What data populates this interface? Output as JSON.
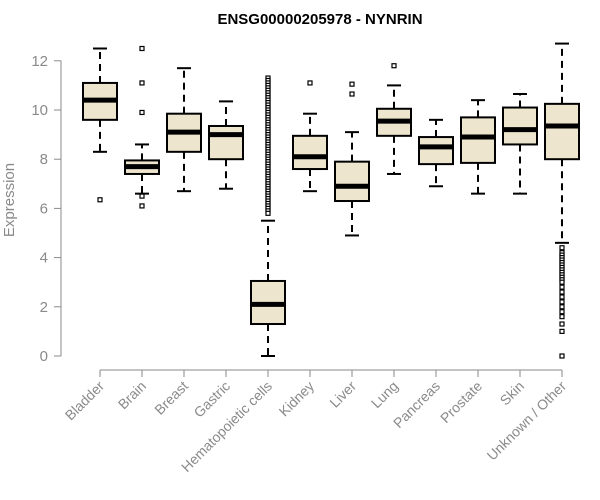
{
  "chart_data": {
    "type": "boxplot",
    "title": "ENSG00000205978 - NYNRIN",
    "ylabel": "Expression",
    "xlabel": "",
    "ylim": [
      0,
      12.8
    ],
    "yticks": [
      0,
      2,
      4,
      6,
      8,
      10,
      12
    ],
    "grid": false,
    "legend": "none",
    "colors": {
      "box_fill": "#ede5cd",
      "stroke": "#000000",
      "axis": "#8a8a8a",
      "label": "#8a8a8a"
    },
    "categories": [
      "Bladder",
      "Brain",
      "Breast",
      "Gastric",
      "Hematopoietic cells",
      "Kidney",
      "Liver",
      "Lung",
      "Pancreas",
      "Prostate",
      "Skin",
      "Unknown / Other"
    ],
    "boxes": [
      {
        "whisker_low": 8.3,
        "q1": 9.6,
        "median": 10.4,
        "q3": 11.1,
        "whisker_high": 12.5,
        "outliers": [
          6.35
        ]
      },
      {
        "whisker_low": 6.6,
        "q1": 7.4,
        "median": 7.7,
        "q3": 7.95,
        "whisker_high": 8.6,
        "outliers": [
          12.5,
          11.1,
          9.9,
          6.5,
          6.1
        ]
      },
      {
        "whisker_low": 6.7,
        "q1": 8.3,
        "median": 9.1,
        "q3": 9.85,
        "whisker_high": 11.7,
        "outliers": []
      },
      {
        "whisker_low": 6.8,
        "q1": 8.0,
        "median": 9.0,
        "q3": 9.35,
        "whisker_high": 10.35,
        "outliers": []
      },
      {
        "whisker_low": 0.0,
        "q1": 1.3,
        "median": 2.1,
        "q3": 3.05,
        "whisker_high": 5.5,
        "outliers": [
          11.3,
          11.2,
          11.1,
          11.0,
          10.9,
          10.8,
          10.7,
          10.6,
          10.5,
          10.4,
          10.3,
          10.2,
          10.1,
          10.0,
          9.9,
          9.8,
          9.7,
          9.6,
          9.5,
          9.4,
          9.3,
          9.2,
          9.1,
          9.0,
          8.9,
          8.8,
          8.7,
          8.6,
          8.5,
          8.4,
          8.3,
          8.2,
          8.1,
          8.0,
          7.9,
          7.8,
          7.7,
          7.6,
          7.5,
          7.4,
          7.3,
          7.2,
          7.1,
          7.0,
          6.9,
          6.8,
          6.7,
          6.6,
          6.5,
          6.4,
          6.3,
          6.2,
          6.1,
          6.0,
          5.9,
          5.8
        ]
      },
      {
        "whisker_low": 6.7,
        "q1": 7.6,
        "median": 8.1,
        "q3": 8.95,
        "whisker_high": 9.85,
        "outliers": [
          11.1
        ]
      },
      {
        "whisker_low": 4.9,
        "q1": 6.3,
        "median": 6.9,
        "q3": 7.9,
        "whisker_high": 9.1,
        "outliers": [
          11.05,
          10.65
        ]
      },
      {
        "whisker_low": 7.4,
        "q1": 8.95,
        "median": 9.55,
        "q3": 10.05,
        "whisker_high": 11.0,
        "outliers": [
          11.8
        ]
      },
      {
        "whisker_low": 6.9,
        "q1": 7.8,
        "median": 8.5,
        "q3": 8.9,
        "whisker_high": 9.6,
        "outliers": []
      },
      {
        "whisker_low": 6.6,
        "q1": 7.85,
        "median": 8.9,
        "q3": 9.7,
        "whisker_high": 10.4,
        "outliers": []
      },
      {
        "whisker_low": 6.6,
        "q1": 8.6,
        "median": 9.2,
        "q3": 10.1,
        "whisker_high": 10.65,
        "outliers": []
      },
      {
        "whisker_low": 4.6,
        "q1": 8.0,
        "median": 9.35,
        "q3": 10.25,
        "whisker_high": 12.7,
        "outliers": [
          4.4,
          4.2,
          4.1,
          4.0,
          3.9,
          3.8,
          3.7,
          3.6,
          3.5,
          3.4,
          3.3,
          3.2,
          3.1,
          3.0,
          2.8,
          2.6,
          2.4,
          2.2,
          2.0,
          1.8,
          1.6,
          1.3,
          1.0,
          0.0
        ]
      }
    ]
  }
}
